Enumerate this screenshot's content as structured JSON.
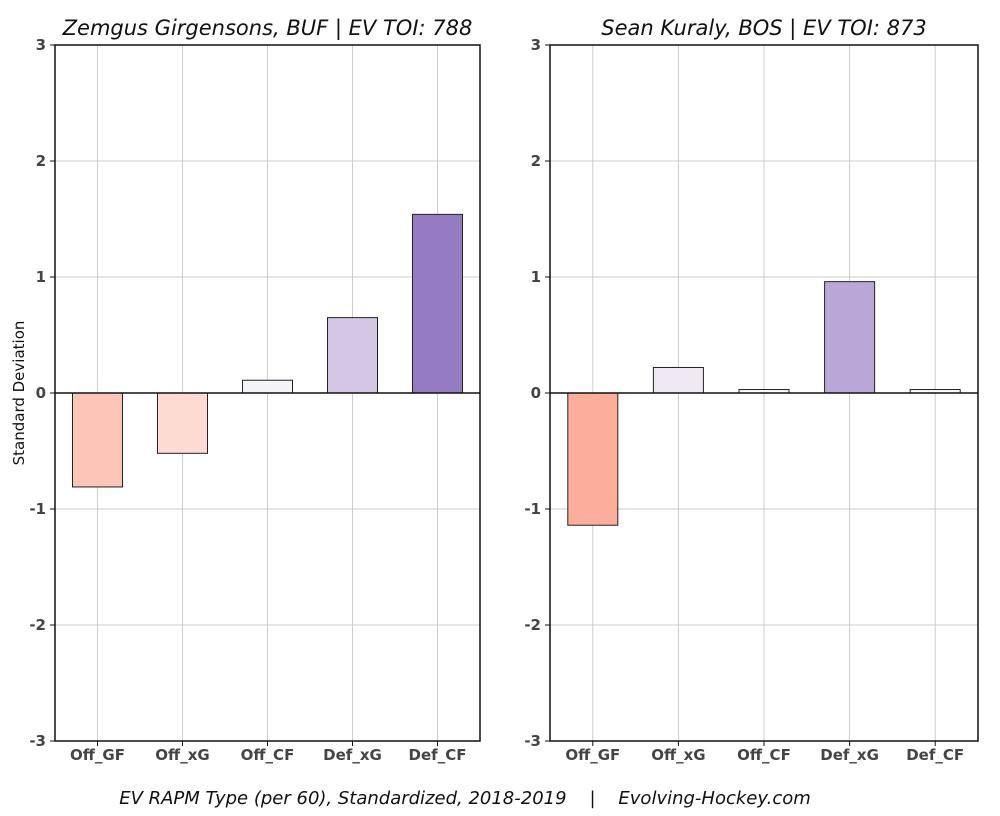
{
  "chart_data": [
    {
      "type": "bar",
      "title": "Zemgus Girgensons, BUF  |  EV TOI: 788",
      "ylabel": "Standard Deviation",
      "xlabel": "",
      "categories": [
        "Off_GF",
        "Off_xG",
        "Off_CF",
        "Def_xG",
        "Def_CF"
      ],
      "values": [
        -0.81,
        -0.52,
        0.11,
        0.65,
        1.54
      ],
      "colors": [
        "#fcc5b7",
        "#fddbd2",
        "#f6f3f8",
        "#d4c6e4",
        "#957bc2"
      ],
      "ylim": [
        -3,
        3
      ],
      "yticks": [
        3,
        2,
        1,
        0,
        -1,
        -2,
        -3
      ],
      "grid": true
    },
    {
      "type": "bar",
      "title": "Sean Kuraly, BOS  |  EV TOI: 873",
      "ylabel": "",
      "xlabel": "",
      "categories": [
        "Off_GF",
        "Off_xG",
        "Off_CF",
        "Def_xG",
        "Def_CF"
      ],
      "values": [
        -1.14,
        0.22,
        0.03,
        0.96,
        0.03
      ],
      "colors": [
        "#fcae9b",
        "#f0e9f4",
        "#f9f8fa",
        "#bba7d7",
        "#f9f8fa"
      ],
      "ylim": [
        -3,
        3
      ],
      "yticks": [
        3,
        2,
        1,
        0,
        -1,
        -2,
        -3
      ],
      "grid": true
    }
  ],
  "caption": "EV RAPM Type (per 60), Standardized, 2018-2019    |    Evolving-Hockey.com"
}
